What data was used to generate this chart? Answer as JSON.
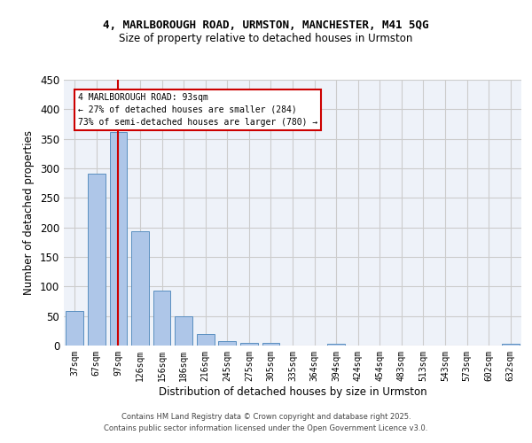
{
  "title_line1": "4, MARLBOROUGH ROAD, URMSTON, MANCHESTER, M41 5QG",
  "title_line2": "Size of property relative to detached houses in Urmston",
  "xlabel": "Distribution of detached houses by size in Urmston",
  "ylabel": "Number of detached properties",
  "categories": [
    "37sqm",
    "67sqm",
    "97sqm",
    "126sqm",
    "156sqm",
    "186sqm",
    "216sqm",
    "245sqm",
    "275sqm",
    "305sqm",
    "335sqm",
    "364sqm",
    "394sqm",
    "424sqm",
    "454sqm",
    "483sqm",
    "513sqm",
    "543sqm",
    "573sqm",
    "602sqm",
    "632sqm"
  ],
  "values": [
    58,
    291,
    362,
    194,
    93,
    50,
    19,
    8,
    5,
    5,
    0,
    0,
    3,
    0,
    0,
    0,
    0,
    0,
    0,
    0,
    3
  ],
  "bar_color": "#aec6e8",
  "bar_edge_color": "#5a8fc0",
  "grid_color": "#cccccc",
  "bg_color": "#eef2f9",
  "vline_x_index": 2,
  "vline_color": "#cc0000",
  "annotation_box_text": "4 MARLBOROUGH ROAD: 93sqm\n← 27% of detached houses are smaller (284)\n73% of semi-detached houses are larger (780) →",
  "annotation_box_color": "#cc0000",
  "footer_line1": "Contains HM Land Registry data © Crown copyright and database right 2025.",
  "footer_line2": "Contains public sector information licensed under the Open Government Licence v3.0.",
  "ylim": [
    0,
    450
  ],
  "yticks": [
    0,
    50,
    100,
    150,
    200,
    250,
    300,
    350,
    400,
    450
  ]
}
